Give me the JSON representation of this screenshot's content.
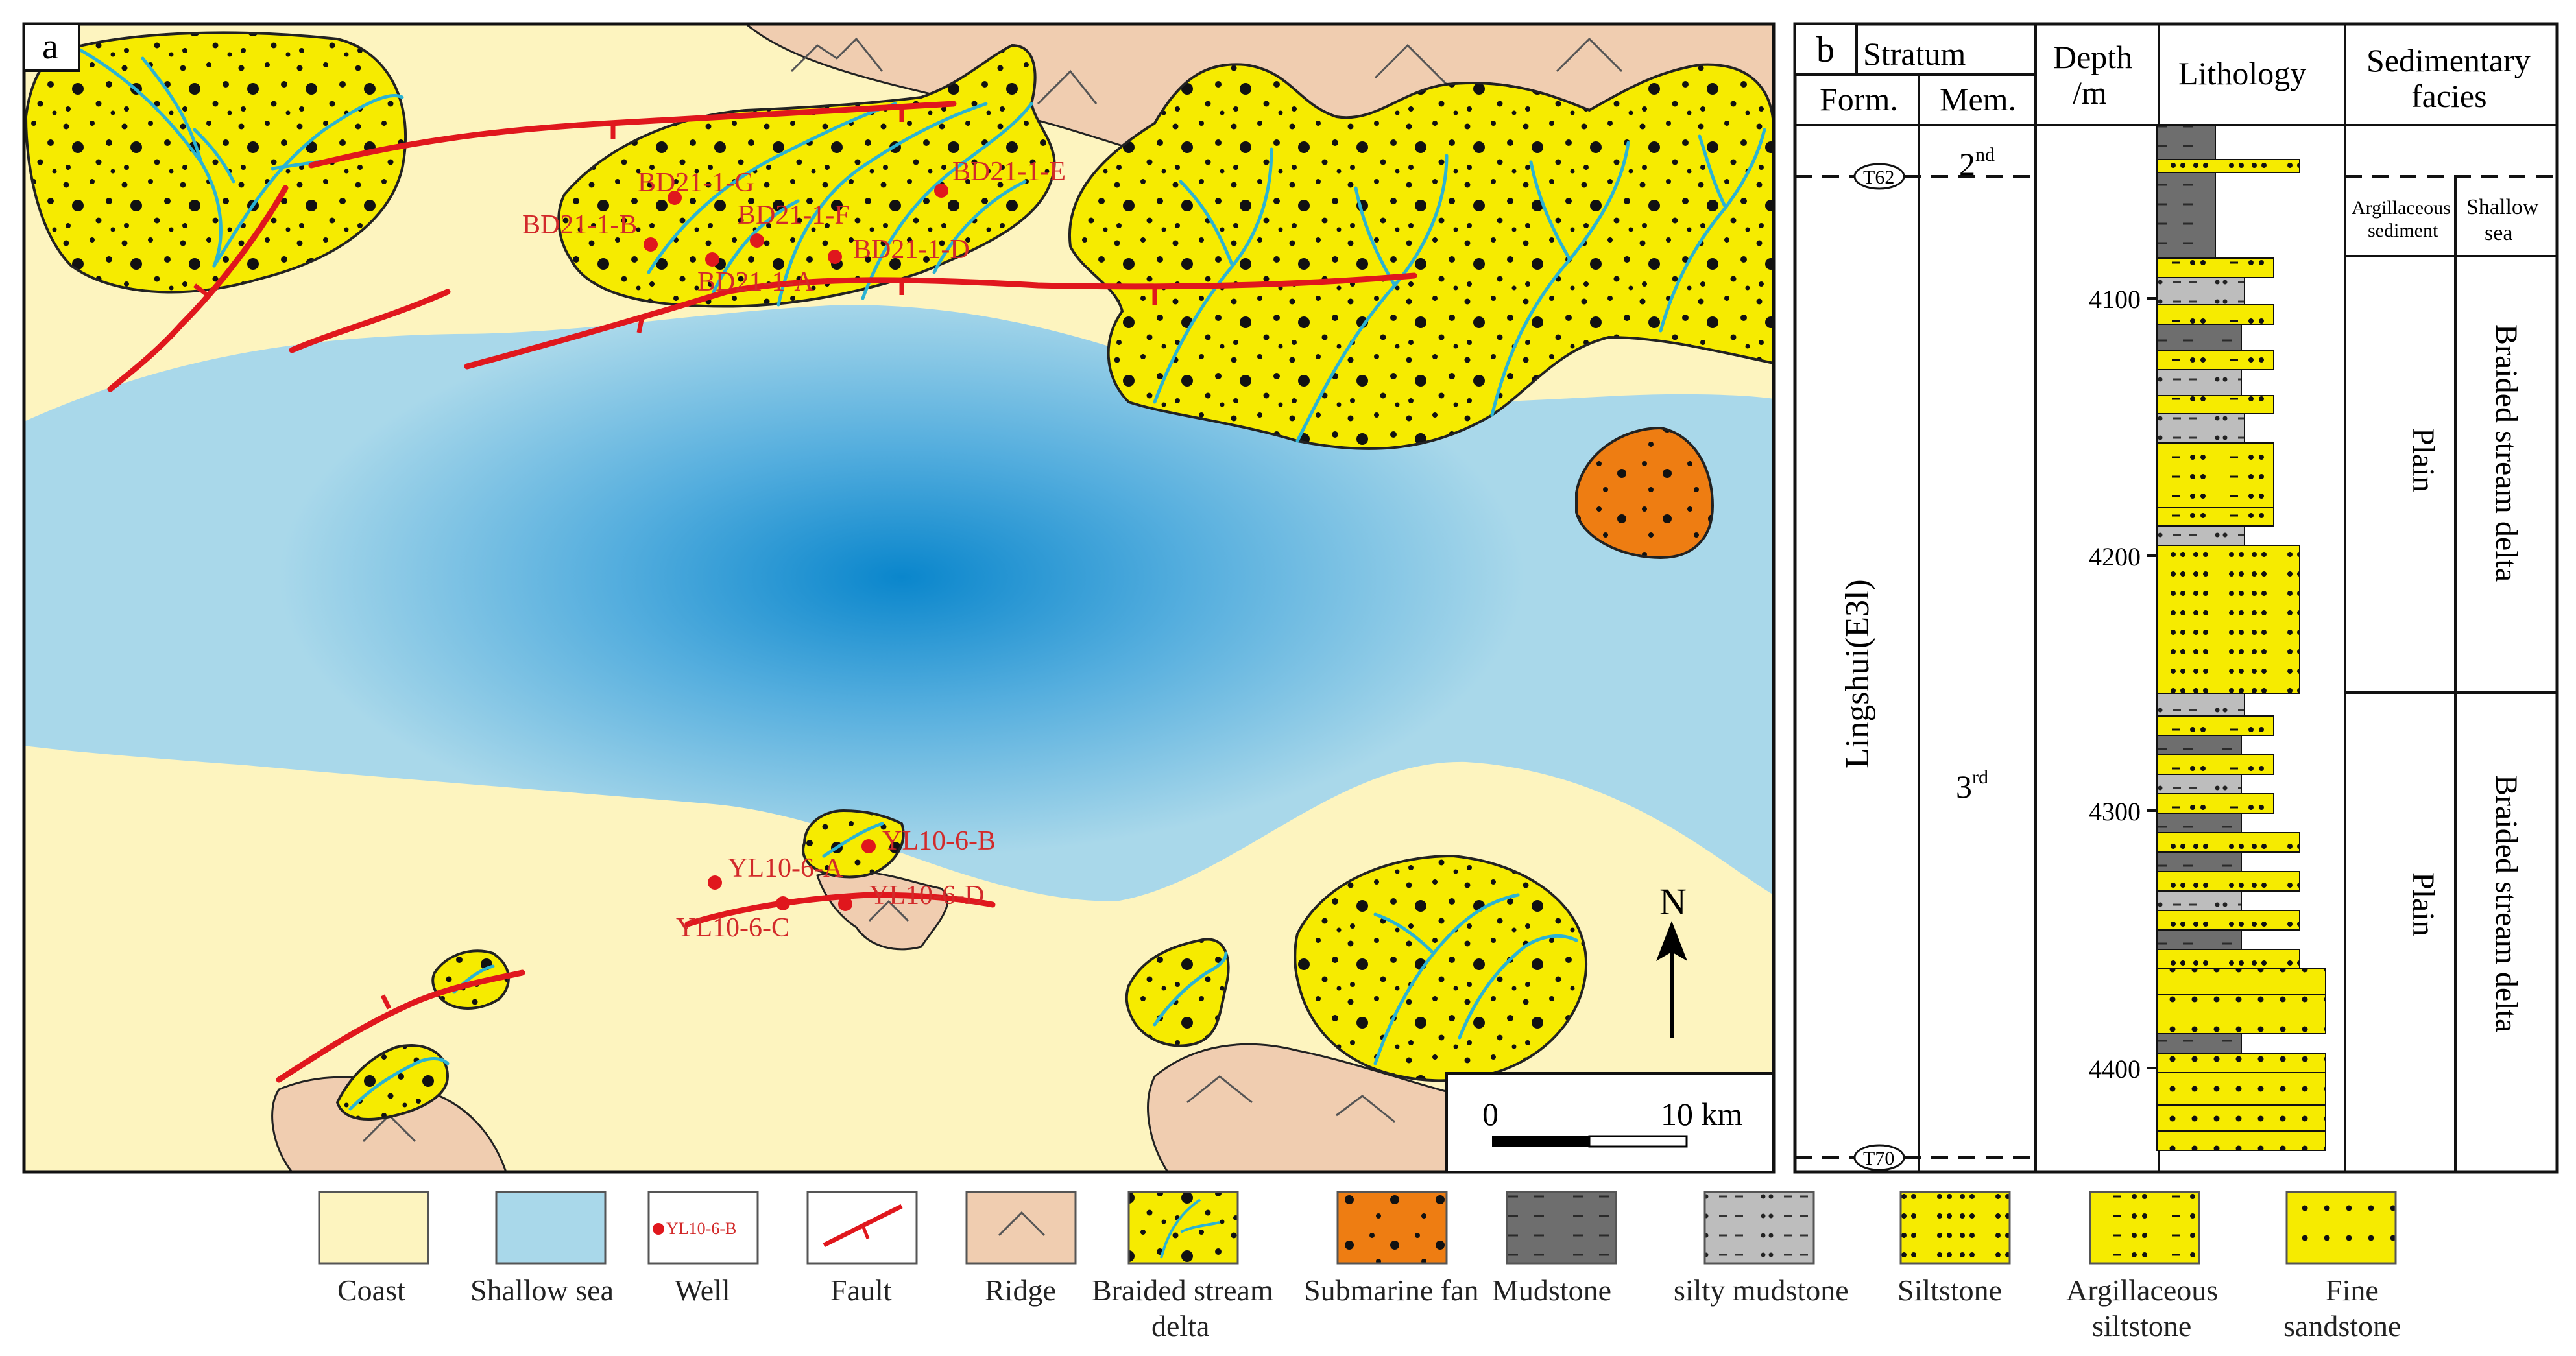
{
  "panel_a": {
    "label": "a",
    "wells_bd": [
      "BD21-1-G",
      "BD21-1-B",
      "BD21-1-F",
      "BD21-1-A",
      "BD21-1-D",
      "BD21-1-E"
    ],
    "wells_yl": [
      "YL10-6-B",
      "YL10-6-A",
      "YL10-6-C",
      "YL10-6-D"
    ],
    "north": "N",
    "scale": {
      "zero": "0",
      "end": "10 km"
    }
  },
  "panel_b": {
    "label": "b",
    "stratum": "Stratum",
    "form": "Form.",
    "mem": "Mem.",
    "depth": "Depth",
    "depth_unit": "/m",
    "lithology": "Lithology",
    "facies_l1": "Sedimentary",
    "facies_l2": "facies",
    "t62": "T62",
    "t70": "T70",
    "formation": "Lingshui(E3l)",
    "member_2_base": "2",
    "member_2_sup": "nd",
    "member_3_base": "3",
    "member_3_sup": "rd",
    "depth_ticks": [
      "4100",
      "4200",
      "4300",
      "4400"
    ],
    "argillaceous_sediment_l1": "Argillaceous",
    "argillaceous_sediment_l2": "sediment",
    "shallow_sea_l1": "Shallow",
    "shallow_sea_l2": "sea",
    "plain_upper": "Plain",
    "plain_lower": "Plain",
    "facies_upper": "Braided stream delta",
    "facies_lower": "Braided stream delta"
  },
  "legend": [
    {
      "key": "coast",
      "line1": "Coast",
      "line2": ""
    },
    {
      "key": "shallow-sea",
      "line1": "Shallow sea",
      "line2": ""
    },
    {
      "key": "well",
      "line1": "Well",
      "line2": "",
      "sample": "YL10-6-B"
    },
    {
      "key": "fault",
      "line1": "Fault",
      "line2": ""
    },
    {
      "key": "ridge",
      "line1": "Ridge",
      "line2": ""
    },
    {
      "key": "braided-stream-delta",
      "line1": "Braided stream",
      "line2": "delta"
    },
    {
      "key": "submarine-fan",
      "line1": "Submarine fan",
      "line2": ""
    },
    {
      "key": "mudstone",
      "line1": "Mudstone",
      "line2": ""
    },
    {
      "key": "silty-mudstone",
      "line1": "silty mudstone",
      "line2": ""
    },
    {
      "key": "siltstone",
      "line1": "Siltstone",
      "line2": ""
    },
    {
      "key": "argillaceous-siltstone",
      "line1": "Argillaceous",
      "line2": "siltstone"
    },
    {
      "key": "fine-sandstone",
      "line1": "Fine",
      "line2": "sandstone"
    }
  ],
  "colors": {
    "coast": "#fdf4bf",
    "shallow_sea": "#a9d8ea",
    "deep_center": "#0a86cc",
    "delta": "#f6eb00",
    "channel": "#2bb3d3",
    "fault": "#e0171d",
    "ridge": "#f0cdb0",
    "fan": "#ee7d12",
    "mudstone": "#6e6e6e",
    "silty_mudstone": "#bdbdbd"
  }
}
